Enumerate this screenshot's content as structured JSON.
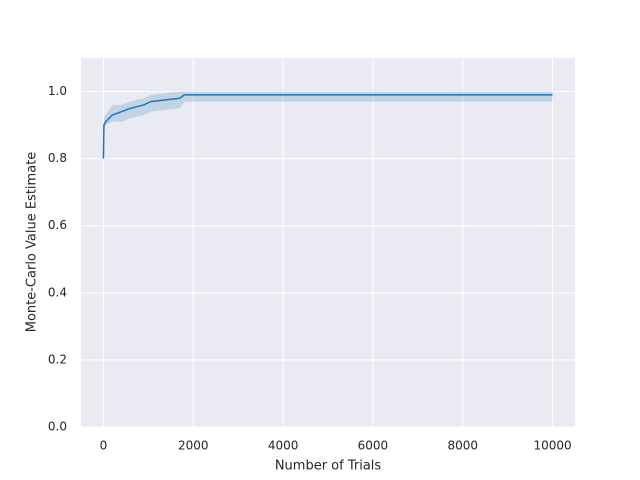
{
  "chart_data": {
    "type": "line",
    "xlabel": "Number of Trials",
    "ylabel": "Monte-Carlo Value Estimate",
    "x": [
      0,
      10,
      50,
      200,
      400,
      600,
      900,
      1050,
      1700,
      1800,
      10000
    ],
    "series": [
      {
        "color": "#1f77b4",
        "values": [
          0.8,
          0.9,
          0.91,
          0.93,
          0.94,
          0.95,
          0.96,
          0.97,
          0.98,
          0.99,
          0.99
        ],
        "lower": [
          0.8,
          0.88,
          0.9,
          0.91,
          0.91,
          0.92,
          0.93,
          0.94,
          0.95,
          0.97,
          0.97
        ],
        "upper": [
          0.8,
          0.92,
          0.93,
          0.96,
          0.96,
          0.97,
          0.98,
          0.99,
          1.0,
          1.0,
          1.0
        ]
      }
    ],
    "xlim": [
      -500,
      10500
    ],
    "ylim": [
      0,
      1.1
    ],
    "xticks": [
      0,
      2000,
      4000,
      6000,
      8000,
      10000
    ],
    "yticks": [
      {
        "value": 0,
        "label": "0.0"
      },
      0.2,
      0.4,
      0.6,
      0.8,
      {
        "value": 1,
        "label": "1.0"
      }
    ],
    "grid": true
  }
}
